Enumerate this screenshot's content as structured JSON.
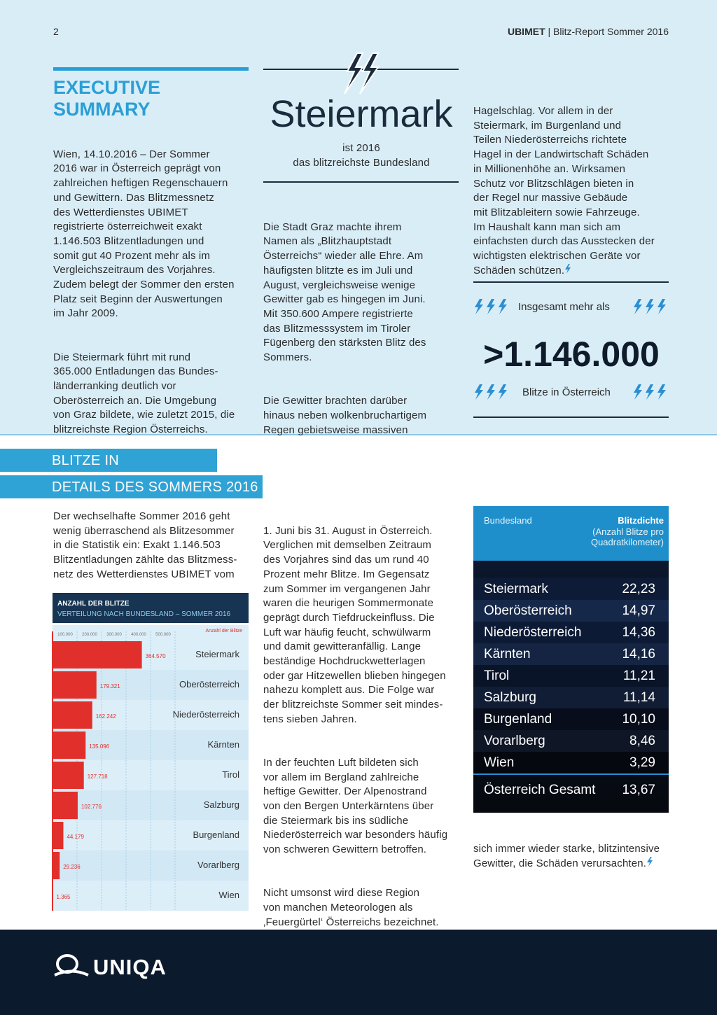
{
  "header": {
    "page": "2",
    "brand": "UBIMET",
    "report": "| Blitz-Report Sommer 2016"
  },
  "summary": {
    "title": "EXECUTIVE\nSUMMARY",
    "paragraphs": [
      "Wien, 14.10.2016 – Der Sommer\n2016 war in Österreich geprägt von\nzahlreichen heftigen Regenschauern\nund Gewittern. Das Blitzmessnetz\ndes Wetterdienstes UBIMET\nregistrierte österreichweit exakt\n1.146.503 Blitzentladungen und\nsomit gut 40 Prozent mehr als im\nVergleichszeitraum des Vorjahres.\nZudem belegt der Sommer den ersten\nPlatz seit Beginn der Auswertungen\nim Jahr 2009.",
      "Die Steiermark führt mit rund\n365.000 Entladungen das Bundes-\nländerranking deutlich vor\nOberösterreich an. Die Umgebung\nvon Graz bildete, wie zuletzt 2015, die\nblitzreichste Region Österreichs."
    ]
  },
  "highlight": {
    "title": "Steiermark",
    "subtitle": "ist 2016\ndas blitzreichste Bundesland"
  },
  "middle_column": [
    "Die Stadt Graz machte ihrem\nNamen als „Blitzhauptstadt\nÖsterreichs“ wieder alle Ehre. Am\nhäufigsten blitzte es im Juli und\nAugust, vergleichsweise wenige\nGewitter gab es hingegen im Juni.\nMit 350.600 Ampere registrierte\ndas Blitzmesssystem im Tiroler\nFügenberg den stärksten Blitz des\nSommers.",
    "Die Gewitter brachten darüber\nhinaus neben wolkenbruchartigem\nRegen gebietsweise massiven"
  ],
  "right_column": "Hagelschlag. Vor allem in der\nSteiermark, im Burgenland und\nTeilen Niederösterreichs richtete\nHagel in der Landwirtschaft Schäden\nin Millionenhöhe an. Wirksamen\nSchutz vor Blitzschlägen bieten in\nder Regel nur massive Gebäude\nmit Blitzableitern sowie Fahrzeuge.\nIm Haushalt kann man sich am\neinfachsten durch das Ausstecken der\nwichtigsten elektrischen Geräte vor\nSchäden schützen.",
  "stat": {
    "prefix": "Insgesamt mehr als",
    "value": ">1.146.000",
    "suffix": "Blitze in Österreich"
  },
  "section": {
    "title_line1": "BLITZE IN ÖSTERREICH:",
    "title_line2": "DETAILS DES SOMMERS 2016"
  },
  "details": {
    "column1": "Der wechselhafte Sommer 2016 geht\nwenig überraschend als Blitzesommer\nin die Statistik ein: Exakt 1.146.503\nBlitzentladungen zählte das Blitzmess-\nnetz des Wetterdienstes UBIMET vom",
    "column2": [
      "1. Juni bis 31. August in Österreich.\nVerglichen mit demselben Zeitraum\ndes Vorjahres sind das um rund 40\nProzent mehr Blitze. Im Gegensatz\nzum Sommer im vergangenen Jahr\nwaren die heurigen Sommermonate\ngeprägt durch Tiefdruckeinfluss. Die\nLuft war häufig feucht, schwülwarm\nund damit gewitteranfällig. Lange\nbeständige Hochdruckwetterlagen\noder gar Hitzewellen blieben hingegen\nnahezu komplett aus. Die Folge war\nder blitzreichste Sommer seit mindes-\ntens sieben Jahren.",
      "In der feuchten Luft bildeten sich\nvor allem im Bergland zahlreiche\nheftige Gewitter. Der Alpenostrand\nvon den Bergen Unterkärntens über\ndie Steiermark bis ins südliche\nNiederösterreich war besonders häufig\nvon schweren Gewittern betroffen.",
      "Nicht umsonst wird diese Region\nvon manchen Meteorologen als\n‚Feuergürtel‘ Österreichs bezeichnet.\nAber auch im Mühl- und Waldviertel,\nim Flachgau sowie in Tirol entluden"
    ],
    "column3": "sich immer wieder starke, blitzintensive\nGewitter, die Schäden verursachten."
  },
  "chart_data": {
    "type": "bar",
    "orientation": "horizontal",
    "title": "ANZAHL DER BLITZE",
    "subtitle": "VERTEILUNG NACH BUNDESLAND  – SOMMER 2016",
    "x_label": "Anzahl der Blitze",
    "categories": [
      "Steiermark",
      "Oberösterreich",
      "Niederösterreich",
      "Kärnten",
      "Tirol",
      "Salzburg",
      "Burgenland",
      "Vorarlberg",
      "Wien"
    ],
    "values": [
      364570,
      179321,
      162242,
      135096,
      127718,
      102776,
      44179,
      29236,
      1365
    ],
    "value_labels": [
      "364.570",
      "179.321",
      "162.242",
      "135.096",
      "127.718",
      "102.776",
      "44.179",
      "29.236",
      "1.365"
    ],
    "color": "#e1302b",
    "xlim": [
      0,
      800000
    ],
    "xticks": [
      {
        "value": 100000,
        "label": "100.000"
      },
      {
        "value": 200000,
        "label": "200.000"
      },
      {
        "value": 300000,
        "label": "300.000"
      },
      {
        "value": 400000,
        "label": "400.000"
      },
      {
        "value": 500000,
        "label": "500.000"
      }
    ],
    "grid": true
  },
  "table": {
    "header": {
      "region": "Bundesland",
      "density": "Blitzdichte",
      "density_note": "(Anzahl Blitze pro\nQuadratkilometer)"
    },
    "rows": [
      [
        "Steiermark",
        "22,23"
      ],
      [
        "Oberösterreich",
        "14,97"
      ],
      [
        "Niederösterreich",
        "14,36"
      ],
      [
        "Kärnten",
        "14,16"
      ],
      [
        "Tirol",
        "11,21"
      ],
      [
        "Salzburg",
        "11,14"
      ],
      [
        "Burgenland",
        "10,10"
      ],
      [
        "Vorarlberg",
        "8,46"
      ],
      [
        "Wien",
        "3,29"
      ]
    ],
    "total": [
      "Österreich Gesamt",
      "13,67"
    ]
  },
  "footer": {
    "logo": "UNIQA"
  }
}
